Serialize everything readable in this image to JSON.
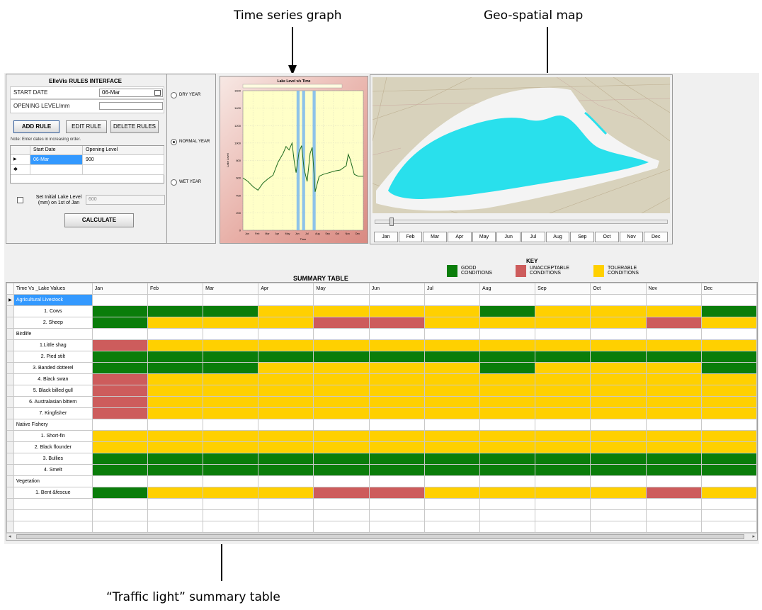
{
  "annotations": {
    "time_series": "Time series graph",
    "geo_map": "Geo-spatial map",
    "traffic_light": "“Traffic light” summary table"
  },
  "rules": {
    "title": "ElleVis RULES INTERFACE",
    "start_date_label": "START DATE",
    "start_date_value": "06-Mar",
    "opening_level_label": "OPENING LEVEL/mm",
    "add_rule": "ADD RULE",
    "edit_rule": "EDIT RULE",
    "delete_rules": "DELETE RULES",
    "note": "Note: Enter dates in increasing order.",
    "grid_headers": [
      "Start Date",
      "Opening Level"
    ],
    "grid_row": {
      "start_date": "06-Mar",
      "opening_level": "900"
    },
    "row_marker": "▶",
    "new_marker": "✱",
    "initial_label": "Set Initial Lake Level (mm) on 1st of Jan",
    "initial_value": "600",
    "calculate": "CALCULATE"
  },
  "year_options": {
    "dry": "DRY YEAR",
    "normal": "NORMAL YEAR",
    "wet": "WET YEAR",
    "selected": "NORMAL YEAR"
  },
  "chart_data": {
    "type": "line",
    "title": "Lake Level v/s Time",
    "xlabel": "Time",
    "ylabel": "Lake Level",
    "x_categories": [
      "Jan",
      "Feb",
      "Mar",
      "Apr",
      "May",
      "Jun",
      "Jul",
      "Aug",
      "Sep",
      "Oct",
      "Nov",
      "Dec"
    ],
    "ylim": [
      0,
      1600
    ],
    "y_ticks": [
      0,
      200,
      400,
      600,
      800,
      1000,
      1200,
      1400,
      1600
    ],
    "series": [
      {
        "values": [
          [
            0,
            600
          ],
          [
            0.5,
            560
          ],
          [
            1,
            500
          ],
          [
            1.5,
            460
          ],
          [
            2,
            540
          ],
          [
            2.5,
            590
          ],
          [
            3,
            630
          ],
          [
            3.5,
            780
          ],
          [
            4,
            880
          ],
          [
            4.3,
            960
          ],
          [
            4.6,
            920
          ],
          [
            4.9,
            1000
          ],
          [
            5.1,
            800
          ],
          [
            5.3,
            660
          ],
          [
            5.6,
            900
          ],
          [
            5.85,
            970
          ],
          [
            6.1,
            700
          ],
          [
            6.4,
            560
          ],
          [
            6.7,
            880
          ],
          [
            6.9,
            950
          ],
          [
            7.05,
            720
          ],
          [
            7.2,
            440
          ],
          [
            7.6,
            620
          ],
          [
            8,
            640
          ],
          [
            8.6,
            660
          ],
          [
            9.2,
            680
          ],
          [
            9.7,
            690
          ],
          [
            10.3,
            740
          ],
          [
            10.5,
            870
          ],
          [
            10.7,
            810
          ],
          [
            11.1,
            640
          ],
          [
            11.5,
            620
          ],
          [
            12,
            620
          ]
        ]
      }
    ],
    "shaded_bands": [
      [
        5.35,
        5.65
      ],
      [
        5.9,
        6.2
      ],
      [
        6.95,
        7.25
      ]
    ],
    "grid": true
  },
  "map": {
    "months": [
      "Jan",
      "Feb",
      "Mar",
      "Apr",
      "May",
      "Jun",
      "Jul",
      "Aug",
      "Sep",
      "Oct",
      "Nov",
      "Dec"
    ]
  },
  "key": {
    "title": "KEY",
    "good": "GOOD CONDITIONS",
    "unacceptable": "UNACCEPTABLE CONDITIONS",
    "tolerable": "TOLERABLE CONDITIONS"
  },
  "colors": {
    "good": "#0a7d0a",
    "unacceptable": "#cd5c5c",
    "tolerable": "#ffd000",
    "lake": "#29e0ec"
  },
  "summary": {
    "title": "SUMMARY TABLE",
    "header_label": "Time Vs _Lake Values",
    "months": [
      "Jan",
      "Feb",
      "Mar",
      "Apr",
      "May",
      "Jun",
      "Jul",
      "Aug",
      "Sep",
      "Oct",
      "Nov",
      "Dec"
    ],
    "groups": [
      {
        "name": "Agricultural Livestock",
        "rows": [
          {
            "label": "1. Cows",
            "values": [
              "g",
              "g",
              "g",
              "y",
              "y",
              "y",
              "y",
              "g",
              "y",
              "y",
              "y",
              "g"
            ]
          },
          {
            "label": "2. Sheep",
            "values": [
              "g",
              "y",
              "y",
              "y",
              "r",
              "r",
              "y",
              "y",
              "y",
              "y",
              "r",
              "y"
            ]
          }
        ]
      },
      {
        "name": "Birdlife",
        "rows": [
          {
            "label": "1.Little shag",
            "values": [
              "r",
              "y",
              "y",
              "y",
              "y",
              "y",
              "y",
              "y",
              "y",
              "y",
              "y",
              "y"
            ]
          },
          {
            "label": "2. Pied stilt",
            "values": [
              "g",
              "g",
              "g",
              "g",
              "g",
              "g",
              "g",
              "g",
              "g",
              "g",
              "g",
              "g"
            ]
          },
          {
            "label": "3. Banded dotterel",
            "values": [
              "g",
              "g",
              "g",
              "y",
              "y",
              "y",
              "y",
              "g",
              "y",
              "y",
              "y",
              "g"
            ]
          },
          {
            "label": "4. Black swan",
            "values": [
              "r",
              "y",
              "y",
              "y",
              "y",
              "y",
              "y",
              "y",
              "y",
              "y",
              "y",
              "y"
            ]
          },
          {
            "label": "5. Black billed gull",
            "values": [
              "r",
              "y",
              "y",
              "y",
              "y",
              "y",
              "y",
              "y",
              "y",
              "y",
              "y",
              "y"
            ]
          },
          {
            "label": "6. Australasian bittern",
            "values": [
              "r",
              "y",
              "y",
              "y",
              "y",
              "y",
              "y",
              "y",
              "y",
              "y",
              "y",
              "y"
            ]
          },
          {
            "label": "7. Kingfisher",
            "values": [
              "r",
              "y",
              "y",
              "y",
              "y",
              "y",
              "y",
              "y",
              "y",
              "y",
              "y",
              "y"
            ]
          }
        ]
      },
      {
        "name": "Native Fishery",
        "rows": [
          {
            "label": "1. Short-fin",
            "values": [
              "y",
              "y",
              "y",
              "y",
              "y",
              "y",
              "y",
              "y",
              "y",
              "y",
              "y",
              "y"
            ]
          },
          {
            "label": "2. Black flounder",
            "values": [
              "y",
              "y",
              "y",
              "y",
              "y",
              "y",
              "y",
              "y",
              "y",
              "y",
              "y",
              "y"
            ]
          },
          {
            "label": "3. Bullies",
            "values": [
              "g",
              "g",
              "g",
              "g",
              "g",
              "g",
              "g",
              "g",
              "g",
              "g",
              "g",
              "g"
            ]
          },
          {
            "label": "4. Smelt",
            "values": [
              "g",
              "g",
              "g",
              "g",
              "g",
              "g",
              "g",
              "g",
              "g",
              "g",
              "g",
              "g"
            ]
          }
        ]
      },
      {
        "name": "Vegetation",
        "rows": [
          {
            "label": "1. Bent &fescue",
            "values": [
              "g",
              "y",
              "y",
              "y",
              "r",
              "r",
              "y",
              "y",
              "y",
              "y",
              "r",
              "y"
            ]
          }
        ]
      }
    ]
  }
}
